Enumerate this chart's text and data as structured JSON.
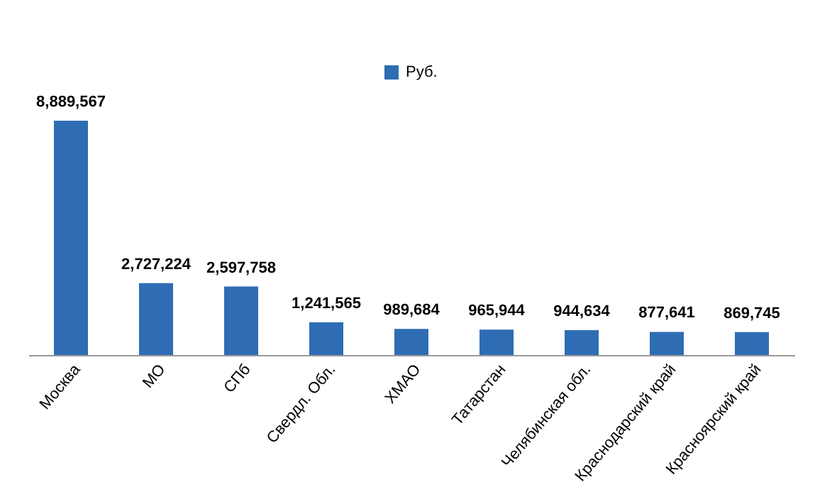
{
  "chart_data": {
    "type": "bar",
    "categories": [
      "Москва",
      "МО",
      "СПб",
      "Свердл. Обл.",
      "ХМАО",
      "Татарстан",
      "Челябинская обл.",
      "Краснодарский край",
      "Красноярский край"
    ],
    "series": [
      {
        "name": "Руб.",
        "color": "#2e6db4",
        "values": [
          8889567,
          2727224,
          2597758,
          1241565,
          989684,
          965944,
          944634,
          877641,
          869745
        ],
        "value_labels": [
          "8,889,567",
          "2,727,224",
          "2,597,758",
          "1,241,565",
          "989,684",
          "965,944",
          "944,634",
          "877,641",
          "869,745"
        ]
      }
    ],
    "legend": "top",
    "grid": false
  }
}
